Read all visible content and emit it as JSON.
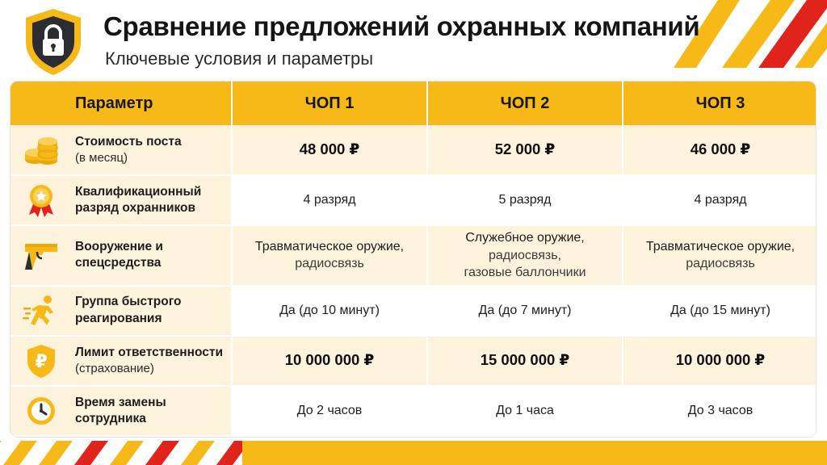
{
  "header": {
    "title": "Сравнение предложений охранных компаний",
    "subtitle": "Ключевые условия и параметры"
  },
  "colors": {
    "accent": "#f6b918",
    "stripe_red": "#e1241b",
    "row_tint": "#fdf3dc"
  },
  "table": {
    "columns": [
      "Параметр",
      "ЧОП 1",
      "ЧОП 2",
      "ЧОП 3"
    ],
    "rows": [
      {
        "icon": "coins-icon",
        "label": "Стоимость поста",
        "sublabel": "(в месяц)",
        "values": [
          [
            "48 000 ₽"
          ],
          [
            "52 000 ₽"
          ],
          [
            "46 000 ₽"
          ]
        ],
        "bold": true
      },
      {
        "icon": "award-badge-icon",
        "label": "Квалификационный разряд охранников",
        "sublabel": "",
        "values": [
          [
            "4 разряд"
          ],
          [
            "5 разряд"
          ],
          [
            "4 разряд"
          ]
        ],
        "bold": false
      },
      {
        "icon": "pistol-icon",
        "label": "Вооружение и спецсредства",
        "sublabel": "",
        "values": [
          [
            "Травматическое оружие,",
            "радиосвязь"
          ],
          [
            "Служебное оружие,",
            "радиосвязь,",
            "газовые баллончики"
          ],
          [
            "Травматическое оружие,",
            "радиосвязь"
          ]
        ],
        "bold": false
      },
      {
        "icon": "running-person-icon",
        "label": "Группа быстрого реагирования",
        "sublabel": "",
        "values": [
          [
            "Да (до 10 минут)"
          ],
          [
            "Да (до 7 минут)"
          ],
          [
            "Да (до 15 минут)"
          ]
        ],
        "bold": false
      },
      {
        "icon": "ruble-shield-icon",
        "label": "Лимит ответственности",
        "sublabel": "(страхование)",
        "values": [
          [
            "10 000 000 ₽"
          ],
          [
            "15 000 000 ₽"
          ],
          [
            "10 000 000 ₽"
          ]
        ],
        "bold": true
      },
      {
        "icon": "clock-icon",
        "label": "Время замены сотрудника",
        "sublabel": "",
        "values": [
          [
            "До 2 часов"
          ],
          [
            "До 1 часа"
          ],
          [
            "До 3 часов"
          ]
        ],
        "bold": false
      }
    ]
  }
}
